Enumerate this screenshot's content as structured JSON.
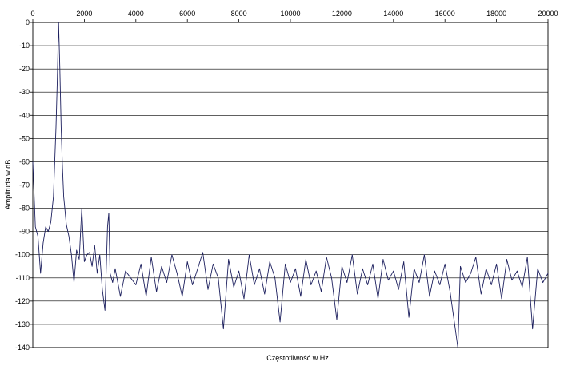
{
  "chart_data": {
    "type": "line",
    "title": "",
    "xlabel": "Częstotliwość w Hz",
    "ylabel": "Amplituda w dB",
    "xlim": [
      0,
      20000
    ],
    "ylim": [
      -140,
      0
    ],
    "x_ticks": [
      "0",
      "2000",
      "4000",
      "6000",
      "8000",
      "10000",
      "12000",
      "14000",
      "16000",
      "18000",
      "20000"
    ],
    "y_ticks": [
      "0",
      "-10",
      "-20",
      "-30",
      "-40",
      "-50",
      "-60",
      "-70",
      "-80",
      "-90",
      "-100",
      "-110",
      "-120",
      "-130",
      "-140"
    ],
    "grid": "horizontal",
    "legend": "none",
    "line_color": "#1c1f5e",
    "series": [
      {
        "x": [
          0,
          100,
          200,
          300,
          400,
          500,
          600,
          700,
          800,
          850,
          900,
          950,
          1000,
          1050,
          1100,
          1150,
          1200,
          1300,
          1400,
          1500,
          1600,
          1700,
          1800,
          1900,
          2000,
          2100,
          2200,
          2300,
          2400,
          2500,
          2600,
          2700,
          2800,
          2900,
          2950,
          3000,
          3100,
          3200,
          3400,
          3600,
          3800,
          4000,
          4200,
          4400,
          4600,
          4800,
          5000,
          5200,
          5400,
          5600,
          5800,
          6000,
          6200,
          6400,
          6600,
          6800,
          7000,
          7200,
          7400,
          7600,
          7800,
          8000,
          8200,
          8400,
          8600,
          8800,
          9000,
          9200,
          9400,
          9600,
          9800,
          10000,
          10200,
          10400,
          10600,
          10800,
          11000,
          11200,
          11400,
          11600,
          11800,
          12000,
          12200,
          12400,
          12600,
          12800,
          13000,
          13200,
          13400,
          13600,
          13800,
          14000,
          14200,
          14400,
          14600,
          14800,
          15000,
          15200,
          15400,
          15600,
          15800,
          16000,
          16200,
          16400,
          16500,
          16600,
          16800,
          17000,
          17200,
          17400,
          17600,
          17800,
          18000,
          18200,
          18400,
          18600,
          18800,
          19000,
          19200,
          19400,
          19600,
          19800,
          20000
        ],
        "y": [
          -60,
          -88,
          -92,
          -108,
          -95,
          -88,
          -90,
          -86,
          -75,
          -60,
          -45,
          -25,
          0,
          -20,
          -45,
          -62,
          -75,
          -87,
          -92,
          -100,
          -112,
          -98,
          -102,
          -80,
          -103,
          -100,
          -99,
          -105,
          -96,
          -108,
          -100,
          -115,
          -124,
          -88,
          -82,
          -108,
          -112,
          -106,
          -118,
          -107,
          -110,
          -113,
          -104,
          -118,
          -101,
          -116,
          -105,
          -112,
          -100,
          -108,
          -118,
          -103,
          -113,
          -106,
          -99,
          -115,
          -104,
          -110,
          -132,
          -102,
          -114,
          -107,
          -119,
          -100,
          -113,
          -106,
          -117,
          -103,
          -110,
          -129,
          -104,
          -112,
          -106,
          -118,
          -102,
          -113,
          -107,
          -116,
          -101,
          -110,
          -128,
          -105,
          -112,
          -100,
          -117,
          -106,
          -113,
          -104,
          -119,
          -102,
          -111,
          -107,
          -115,
          -103,
          -127,
          -106,
          -112,
          -100,
          -118,
          -107,
          -113,
          -104,
          -116,
          -132,
          -140,
          -105,
          -112,
          -108,
          -101,
          -117,
          -106,
          -113,
          -104,
          -119,
          -102,
          -111,
          -107,
          -114,
          -101,
          -132,
          -106,
          -112,
          -108
        ]
      }
    ]
  }
}
